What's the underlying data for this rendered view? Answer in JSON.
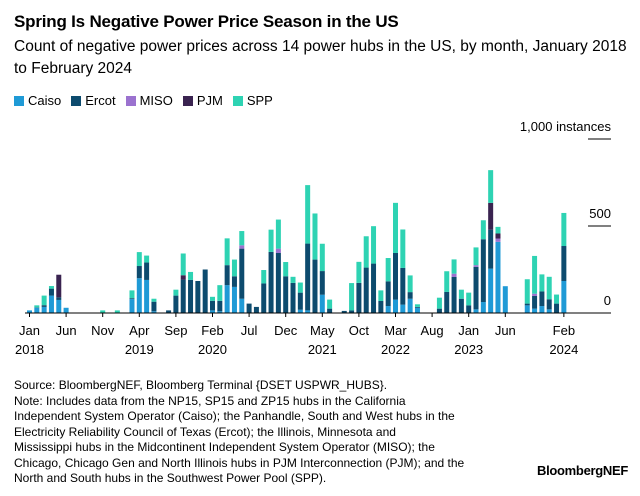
{
  "chart_data": {
    "type": "bar",
    "stacked": true,
    "title": "Spring Is Negative Power Price Season in the US",
    "subtitle": "Count of negative power prices across 14 power hubs in the US, by month, January 2018 to February 2024",
    "ylabel": "1,000 instances",
    "ylim": [
      0,
      1000
    ],
    "yticks": [
      {
        "value": 0,
        "label": "0"
      },
      {
        "value": 500,
        "label": "500"
      },
      {
        "value": 1000,
        "label": "1,000 instances"
      }
    ],
    "legend_position": "top-left",
    "grid": "short right-side marks at 500 and 1,000",
    "x_start": "2018-01",
    "x_end": "2024-02",
    "xticks": [
      {
        "index": 0,
        "month": "Jan",
        "year": "2018"
      },
      {
        "index": 5,
        "month": "Jun",
        "year": ""
      },
      {
        "index": 10,
        "month": "Nov",
        "year": ""
      },
      {
        "index": 15,
        "month": "Apr",
        "year": "2019"
      },
      {
        "index": 20,
        "month": "Sep",
        "year": ""
      },
      {
        "index": 25,
        "month": "Feb",
        "year": "2020"
      },
      {
        "index": 30,
        "month": "Jul",
        "year": ""
      },
      {
        "index": 35,
        "month": "Dec",
        "year": ""
      },
      {
        "index": 40,
        "month": "May",
        "year": "2021"
      },
      {
        "index": 45,
        "month": "Oct",
        "year": ""
      },
      {
        "index": 50,
        "month": "Mar",
        "year": "2022"
      },
      {
        "index": 55,
        "month": "Aug",
        "year": ""
      },
      {
        "index": 60,
        "month": "Jan",
        "year": "2023"
      },
      {
        "index": 65,
        "month": "Jun",
        "year": ""
      },
      {
        "index": 73,
        "month": "Feb",
        "year": "2024"
      }
    ],
    "series": [
      {
        "name": "Caiso",
        "color": "#1f9ad6",
        "values": [
          15,
          30,
          35,
          100,
          75,
          30,
          0,
          0,
          0,
          0,
          0,
          0,
          0,
          0,
          80,
          200,
          190,
          10,
          0,
          0,
          0,
          0,
          0,
          0,
          0,
          15,
          10,
          160,
          150,
          82,
          0,
          0,
          0,
          0,
          0,
          0,
          0,
          19,
          15,
          0,
          105,
          0,
          0,
          0,
          0,
          0,
          0,
          0,
          0,
          40,
          77,
          48,
          82,
          30,
          0,
          0,
          0,
          0,
          0,
          0,
          0,
          21,
          63,
          255,
          409,
          154,
          0,
          0,
          44,
          25,
          40,
          21,
          0,
          184
        ]
      },
      {
        "name": "Ercot",
        "color": "#0d4b6e",
        "values": [
          0,
          2,
          10,
          40,
          15,
          0,
          0,
          0,
          0,
          0,
          0,
          0,
          0,
          0,
          5,
          70,
          100,
          55,
          0,
          15,
          100,
          192,
          190,
          184,
          250,
          55,
          60,
          115,
          61,
          288,
          54,
          35,
          170,
          351,
          345,
          211,
          173,
          98,
          384,
          307,
          136,
          25,
          0,
          12,
          15,
          173,
          261,
          284,
          69,
          142,
          268,
          211,
          38,
          5,
          0,
          0,
          25,
          121,
          207,
          82,
          44,
          244,
          361,
          224,
          0,
          0,
          0,
          0,
          10,
          73,
          84,
          58,
          54,
          201
        ]
      },
      {
        "name": "MISO",
        "color": "#9b72cf",
        "values": [
          0,
          0,
          0,
          0,
          0,
          0,
          0,
          0,
          0,
          0,
          0,
          0,
          0,
          0,
          0,
          0,
          0,
          0,
          0,
          0,
          0,
          0,
          0,
          0,
          0,
          0,
          0,
          0,
          0,
          19,
          0,
          0,
          0,
          0,
          25,
          0,
          0,
          0,
          0,
          0,
          0,
          0,
          0,
          0,
          0,
          0,
          0,
          0,
          0,
          0,
          0,
          0,
          0,
          0,
          0,
          0,
          0,
          0,
          19,
          0,
          0,
          10,
          0,
          0,
          19,
          0,
          0,
          0,
          0,
          13,
          0,
          0,
          0,
          0
        ]
      },
      {
        "name": "PJM",
        "color": "#3a2350",
        "values": [
          0,
          0,
          0,
          0,
          130,
          0,
          0,
          0,
          0,
          0,
          0,
          0,
          0,
          0,
          0,
          0,
          0,
          0,
          0,
          0,
          0,
          25,
          0,
          0,
          0,
          0,
          0,
          0,
          0,
          0,
          0,
          0,
          0,
          0,
          0,
          0,
          0,
          0,
          0,
          0,
          0,
          0,
          0,
          0,
          0,
          0,
          0,
          0,
          0,
          0,
          0,
          0,
          0,
          0,
          0,
          0,
          0,
          0,
          0,
          0,
          0,
          0,
          0,
          154,
          29,
          0,
          0,
          0,
          0,
          0,
          0,
          0,
          0,
          0
        ]
      },
      {
        "name": "SPP",
        "color": "#2ed3b3",
        "values": [
          0,
          12,
          55,
          15,
          0,
          0,
          0,
          0,
          0,
          0,
          15,
          0,
          15,
          0,
          45,
          80,
          40,
          17,
          0,
          0,
          34,
          125,
          46,
          0,
          0,
          23,
          90,
          154,
          96,
          82,
          0,
          0,
          77,
          128,
          167,
          82,
          35,
          58,
          336,
          265,
          157,
          52,
          0,
          0,
          157,
          121,
          180,
          215,
          61,
          134,
          288,
          221,
          96,
          15,
          0,
          0,
          63,
          119,
          82,
          52,
          73,
          102,
          109,
          188,
          38,
          0,
          0,
          0,
          140,
          217,
          98,
          129,
          52,
          190
        ]
      }
    ]
  },
  "source_lines": [
    "Source: BloombergNEF, Bloomberg Terminal {DSET USPWR_HUBS}.",
    "Note: Includes data from the NP15, SP15 and ZP15 hubs in the California",
    "Independent System Operator (Caiso); the Panhandle, South and West hubs in the",
    "Electricity Reliability Council of Texas (Ercot); the Illinois, Minnesota and",
    "Mississippi hubs in the Midcontinent Independent System Operator (MISO); the",
    "Chicago, Chicago Gen and North Illinois hubs in PJM Interconnection (PJM); and the",
    "North and South hubs in the Southwest Power Pool (SPP)."
  ],
  "logo": "BloombergNEF"
}
